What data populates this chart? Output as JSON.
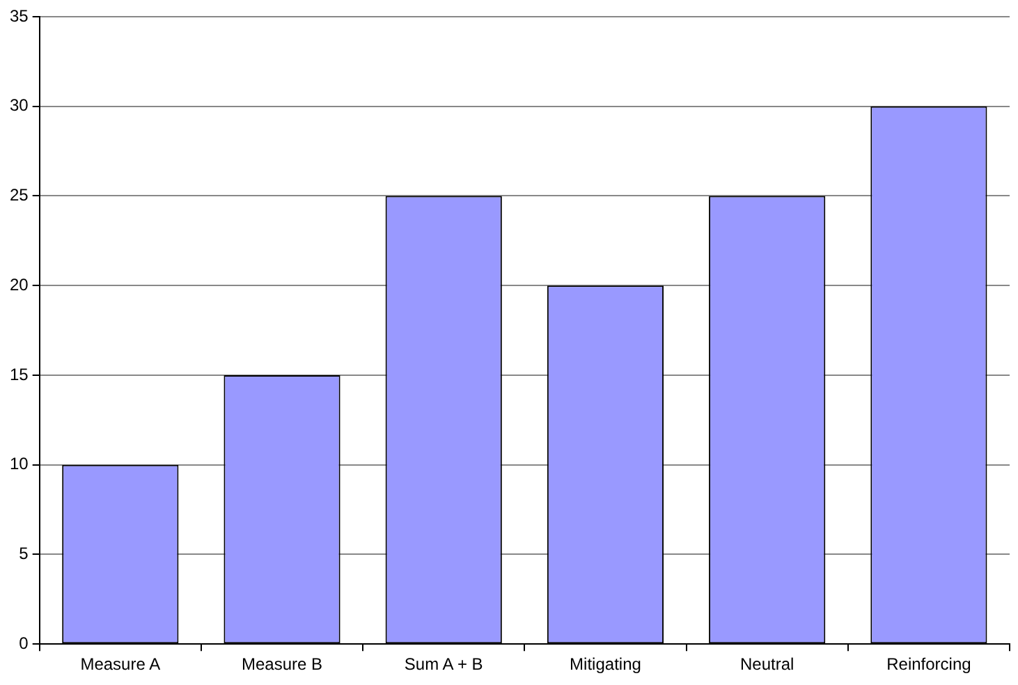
{
  "chart_data": {
    "type": "bar",
    "categories": [
      "Measure A",
      "Measure B",
      "Sum A + B",
      "Mitigating",
      "Neutral",
      "Reinforcing"
    ],
    "values": [
      10,
      15,
      25,
      20,
      25,
      30
    ],
    "color": "#9999ff",
    "ylim": [
      0,
      35
    ],
    "yticks": [
      0,
      5,
      10,
      15,
      20,
      25,
      30,
      35
    ],
    "grid": "y",
    "legend": false
  }
}
